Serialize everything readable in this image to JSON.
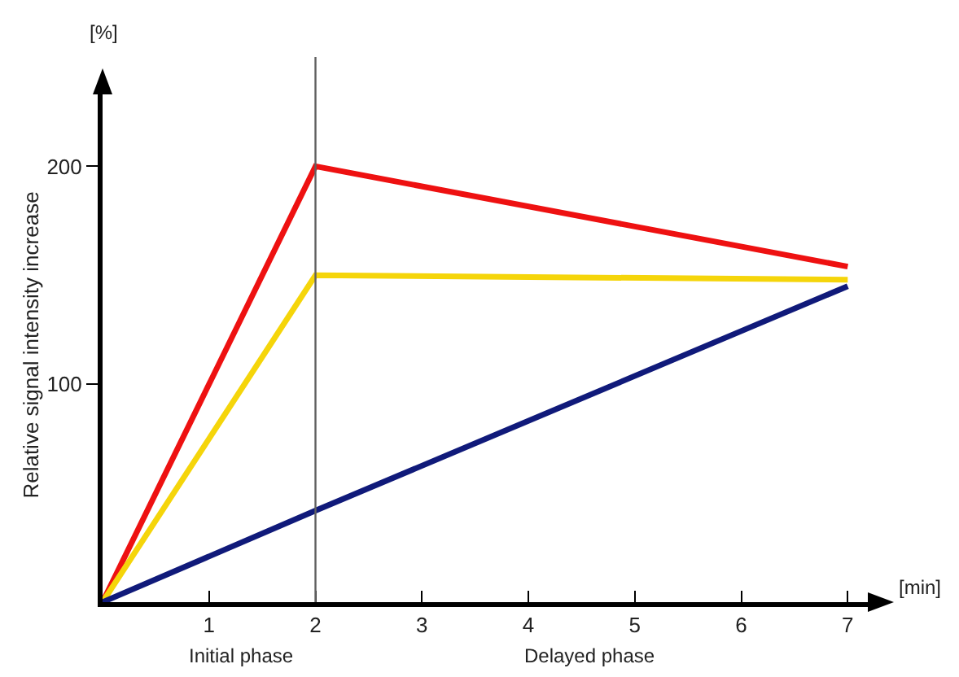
{
  "chart_data": {
    "type": "line",
    "ylabel": "Relative signal intensity increase",
    "x": [
      0,
      2,
      7
    ],
    "series": [
      {
        "color": "#ee1111",
        "values": [
          0,
          200,
          154
        ]
      },
      {
        "color": "#f5d50a",
        "values": [
          0,
          150,
          148
        ]
      },
      {
        "color": "#101a7a",
        "values": [
          0,
          42,
          145
        ]
      }
    ],
    "xlim": [
      0,
      7.25
    ],
    "xticks": [
      1,
      2,
      3,
      4,
      5,
      6,
      7
    ],
    "ylim": [
      0,
      236
    ],
    "yticks": [
      100,
      200
    ],
    "ref_lines": [
      {
        "axis": "x",
        "value": 2,
        "color": "#606060"
      }
    ],
    "annotations": [
      "[%]",
      "[min]",
      "Initial phase",
      "Delayed phase"
    ],
    "grid": false,
    "marker": "none",
    "line_style": "solid"
  }
}
